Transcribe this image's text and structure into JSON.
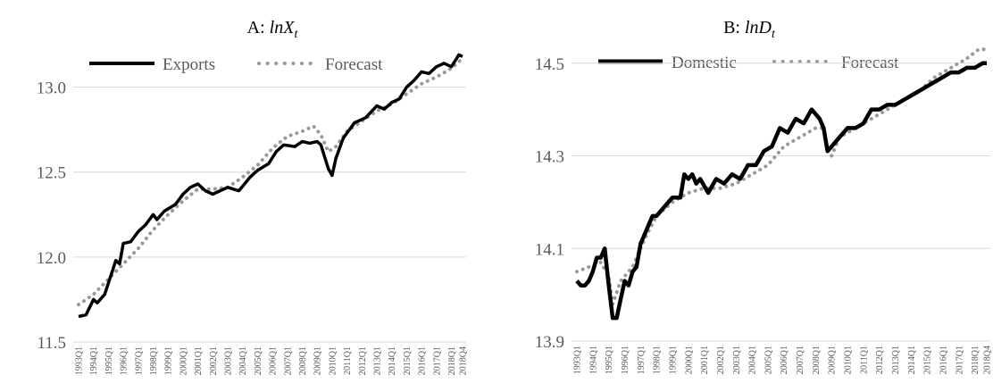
{
  "chart_data": [
    {
      "type": "line",
      "panel_label": "A: ",
      "title_var": "lnX",
      "title_sub": "t",
      "ylim": [
        11.5,
        13.25
      ],
      "yticks": [
        11.5,
        12.0,
        12.5,
        13.0
      ],
      "ytick_labels": [
        "11.5",
        "12.0",
        "12.5",
        "13.0"
      ],
      "x_labels": [
        "1993Q1",
        "1994Q1",
        "1995Q1",
        "1996Q1",
        "1997Q1",
        "1998Q1",
        "1999Q1",
        "2000Q1",
        "2001Q1",
        "2002Q1",
        "2003Q1",
        "2004Q1",
        "2005Q1",
        "2006Q1",
        "2007Q1",
        "2008Q1",
        "2009Q1",
        "2010Q1",
        "2011Q1",
        "2012Q1",
        "2013Q1",
        "2014Q1",
        "2015Q1",
        "2016Q1",
        "2017Q1",
        "2018Q1",
        "2018Q4"
      ],
      "x_label_index": [
        0,
        4,
        8,
        12,
        16,
        20,
        24,
        28,
        32,
        36,
        40,
        44,
        48,
        52,
        56,
        60,
        64,
        68,
        72,
        76,
        80,
        84,
        88,
        92,
        96,
        100,
        103
      ],
      "legend_position": "top",
      "series": [
        {
          "name": "Exports",
          "color": "#000000",
          "style": "solid",
          "anchors": [
            [
              0,
              11.65
            ],
            [
              2,
              11.66
            ],
            [
              4,
              11.75
            ],
            [
              5,
              11.73
            ],
            [
              7,
              11.78
            ],
            [
              10,
              11.98
            ],
            [
              11,
              11.96
            ],
            [
              12,
              12.08
            ],
            [
              14,
              12.09
            ],
            [
              16,
              12.15
            ],
            [
              18,
              12.19
            ],
            [
              20,
              12.25
            ],
            [
              21,
              12.22
            ],
            [
              23,
              12.27
            ],
            [
              26,
              12.31
            ],
            [
              28,
              12.37
            ],
            [
              30,
              12.41
            ],
            [
              32,
              12.43
            ],
            [
              34,
              12.39
            ],
            [
              36,
              12.37
            ],
            [
              38,
              12.39
            ],
            [
              40,
              12.41
            ],
            [
              43,
              12.39
            ],
            [
              46,
              12.47
            ],
            [
              48,
              12.51
            ],
            [
              51,
              12.55
            ],
            [
              53,
              12.62
            ],
            [
              55,
              12.66
            ],
            [
              58,
              12.65
            ],
            [
              60,
              12.68
            ],
            [
              62,
              12.67
            ],
            [
              64,
              12.68
            ],
            [
              65,
              12.66
            ],
            [
              67,
              12.52
            ],
            [
              68,
              12.48
            ],
            [
              69,
              12.58
            ],
            [
              71,
              12.7
            ],
            [
              74,
              12.79
            ],
            [
              77,
              12.82
            ],
            [
              80,
              12.89
            ],
            [
              82,
              12.87
            ],
            [
              84,
              12.91
            ],
            [
              86,
              12.93
            ],
            [
              88,
              13.0
            ],
            [
              90,
              13.04
            ],
            [
              92,
              13.09
            ],
            [
              94,
              13.08
            ],
            [
              96,
              13.12
            ],
            [
              98,
              13.14
            ],
            [
              100,
              13.12
            ],
            [
              102,
              13.19
            ],
            [
              103,
              13.18
            ]
          ]
        },
        {
          "name": "Forecast",
          "color": "#999999",
          "style": "dotted",
          "anchors": [
            [
              0,
              11.72
            ],
            [
              4,
              11.78
            ],
            [
              8,
              11.87
            ],
            [
              12,
              11.96
            ],
            [
              16,
              12.05
            ],
            [
              20,
              12.16
            ],
            [
              24,
              12.25
            ],
            [
              28,
              12.33
            ],
            [
              32,
              12.4
            ],
            [
              36,
              12.4
            ],
            [
              40,
              12.41
            ],
            [
              44,
              12.47
            ],
            [
              48,
              12.54
            ],
            [
              52,
              12.64
            ],
            [
              56,
              12.71
            ],
            [
              60,
              12.74
            ],
            [
              63,
              12.77
            ],
            [
              65,
              12.72
            ],
            [
              67,
              12.62
            ],
            [
              69,
              12.65
            ],
            [
              72,
              12.74
            ],
            [
              76,
              12.8
            ],
            [
              80,
              12.86
            ],
            [
              84,
              12.9
            ],
            [
              88,
              12.96
            ],
            [
              92,
              13.02
            ],
            [
              96,
              13.06
            ],
            [
              100,
              13.11
            ],
            [
              103,
              13.17
            ]
          ]
        }
      ]
    },
    {
      "type": "line",
      "panel_label": "B: ",
      "title_var": "lnD",
      "title_sub": "t",
      "ylim": [
        13.9,
        14.54
      ],
      "yticks": [
        13.9,
        14.1,
        14.3,
        14.5
      ],
      "ytick_labels": [
        "13.9",
        "14.1",
        "14.3",
        "14.5"
      ],
      "x_labels": [
        "1993Q1",
        "1994Q1",
        "1995Q1",
        "1996Q1",
        "1997Q1",
        "1998Q1",
        "1999Q1",
        "2000Q1",
        "2001Q1",
        "2002Q1",
        "2003Q1",
        "2004Q1",
        "2005Q1",
        "2006Q1",
        "2007Q1",
        "2008Q1",
        "2009Q1",
        "2010Q1",
        "2011Q1",
        "2012Q1",
        "2013Q1",
        "2014Q1",
        "2015Q1",
        "2016Q1",
        "2017Q1",
        "2018Q1",
        "2018Q4"
      ],
      "x_label_index": [
        0,
        4,
        8,
        12,
        16,
        20,
        24,
        28,
        32,
        36,
        40,
        44,
        48,
        52,
        56,
        60,
        64,
        68,
        72,
        76,
        80,
        84,
        88,
        92,
        96,
        100,
        103
      ],
      "legend_position": "top",
      "series": [
        {
          "name": "Domestic",
          "color": "#000000",
          "style": "solid",
          "anchors": [
            [
              0,
              14.03
            ],
            [
              1,
              14.02
            ],
            [
              2,
              14.02
            ],
            [
              3,
              14.03
            ],
            [
              4,
              14.05
            ],
            [
              5,
              14.08
            ],
            [
              6,
              14.08
            ],
            [
              7,
              14.1
            ],
            [
              8,
              14.02
            ],
            [
              9,
              13.95
            ],
            [
              10,
              13.95
            ],
            [
              11,
              13.99
            ],
            [
              12,
              14.03
            ],
            [
              13,
              14.02
            ],
            [
              14,
              14.05
            ],
            [
              15,
              14.06
            ],
            [
              16,
              14.11
            ],
            [
              17,
              14.13
            ],
            [
              18,
              14.15
            ],
            [
              19,
              14.17
            ],
            [
              20,
              14.17
            ],
            [
              22,
              14.19
            ],
            [
              24,
              14.21
            ],
            [
              26,
              14.21
            ],
            [
              27,
              14.26
            ],
            [
              28,
              14.25
            ],
            [
              29,
              14.26
            ],
            [
              30,
              14.24
            ],
            [
              31,
              14.25
            ],
            [
              33,
              14.22
            ],
            [
              35,
              14.25
            ],
            [
              37,
              14.24
            ],
            [
              39,
              14.26
            ],
            [
              41,
              14.25
            ],
            [
              43,
              14.28
            ],
            [
              45,
              14.28
            ],
            [
              47,
              14.31
            ],
            [
              49,
              14.32
            ],
            [
              51,
              14.36
            ],
            [
              53,
              14.35
            ],
            [
              55,
              14.38
            ],
            [
              57,
              14.37
            ],
            [
              59,
              14.4
            ],
            [
              61,
              14.38
            ],
            [
              62,
              14.36
            ],
            [
              63,
              14.31
            ],
            [
              64,
              14.32
            ],
            [
              66,
              14.34
            ],
            [
              68,
              14.36
            ],
            [
              70,
              14.36
            ],
            [
              72,
              14.37
            ],
            [
              74,
              14.4
            ],
            [
              76,
              14.4
            ],
            [
              78,
              14.41
            ],
            [
              80,
              14.41
            ],
            [
              82,
              14.42
            ],
            [
              84,
              14.43
            ],
            [
              86,
              14.44
            ],
            [
              88,
              14.45
            ],
            [
              90,
              14.46
            ],
            [
              92,
              14.47
            ],
            [
              94,
              14.48
            ],
            [
              96,
              14.48
            ],
            [
              98,
              14.49
            ],
            [
              100,
              14.49
            ],
            [
              102,
              14.5
            ],
            [
              103,
              14.5
            ]
          ]
        },
        {
          "name": "Forecast",
          "color": "#999999",
          "style": "dotted",
          "anchors": [
            [
              0,
              14.05
            ],
            [
              3,
              14.06
            ],
            [
              6,
              14.07
            ],
            [
              8,
              14.04
            ],
            [
              9,
              13.98
            ],
            [
              11,
              14.03
            ],
            [
              14,
              14.06
            ],
            [
              17,
              14.12
            ],
            [
              20,
              14.17
            ],
            [
              24,
              14.2
            ],
            [
              28,
              14.22
            ],
            [
              32,
              14.23
            ],
            [
              36,
              14.23
            ],
            [
              40,
              14.24
            ],
            [
              44,
              14.26
            ],
            [
              48,
              14.28
            ],
            [
              52,
              14.32
            ],
            [
              56,
              14.34
            ],
            [
              60,
              14.36
            ],
            [
              62,
              14.36
            ],
            [
              63,
              14.31
            ],
            [
              64,
              14.3
            ],
            [
              66,
              14.34
            ],
            [
              70,
              14.36
            ],
            [
              74,
              14.38
            ],
            [
              78,
              14.4
            ],
            [
              82,
              14.42
            ],
            [
              86,
              14.44
            ],
            [
              90,
              14.47
            ],
            [
              94,
              14.49
            ],
            [
              98,
              14.51
            ],
            [
              101,
              14.53
            ],
            [
              103,
              14.53
            ]
          ]
        }
      ]
    }
  ]
}
